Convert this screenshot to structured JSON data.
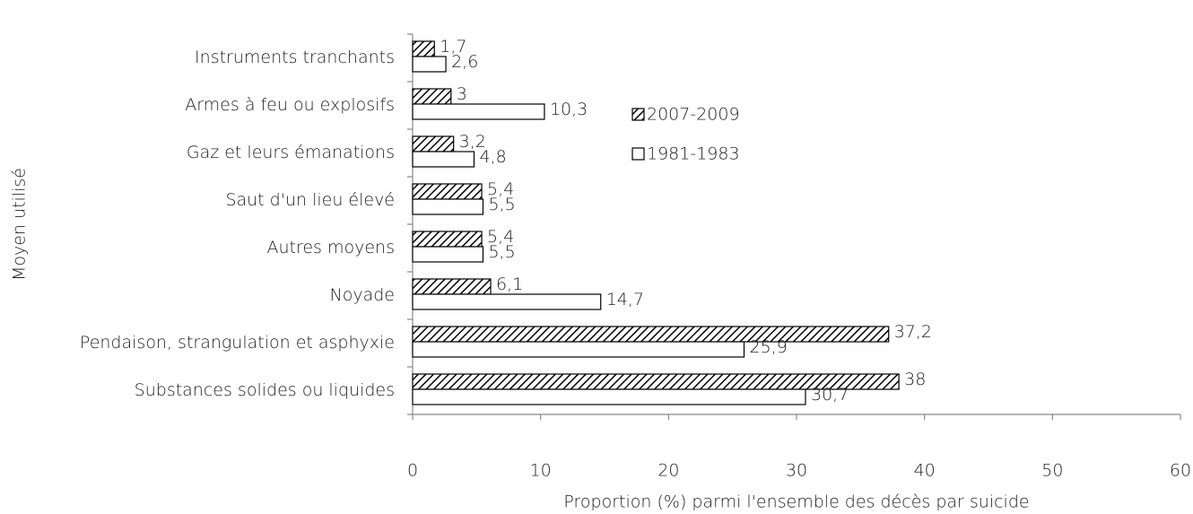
{
  "chart_data": {
    "type": "hbar",
    "x_label": "Proportion (%) parmi l'ensemble des décès par suicide",
    "y_label": "Moyen utilisé",
    "categories": [
      "Instruments tranchants",
      "Armes à feu ou explosifs",
      "Gaz et leurs émanations",
      "Saut d'un lieu élevé",
      "Autres moyens",
      "Noyade",
      "Pendaison, strangulation et asphyxie",
      "Substances solides ou liquides"
    ],
    "series": [
      {
        "name": "2007-2009",
        "values": [
          1.7,
          3,
          3.2,
          5.4,
          5.4,
          6.1,
          37.2,
          38
        ],
        "value_labels": [
          "1,7",
          "3",
          "3,2",
          "5,4",
          "5,4",
          "6,1",
          "37,2",
          "38"
        ]
      },
      {
        "name": "1981-1983",
        "values": [
          2.6,
          10.3,
          4.8,
          5.5,
          5.5,
          14.7,
          25.9,
          30.7
        ],
        "value_labels": [
          "2,6",
          "10,3",
          "4,8",
          "5,5",
          "5,5",
          "14,7",
          "25,9",
          "30,7"
        ]
      }
    ],
    "xlim": [
      0,
      60
    ],
    "xticks": [
      0,
      10,
      20,
      30,
      40,
      50,
      60
    ]
  }
}
